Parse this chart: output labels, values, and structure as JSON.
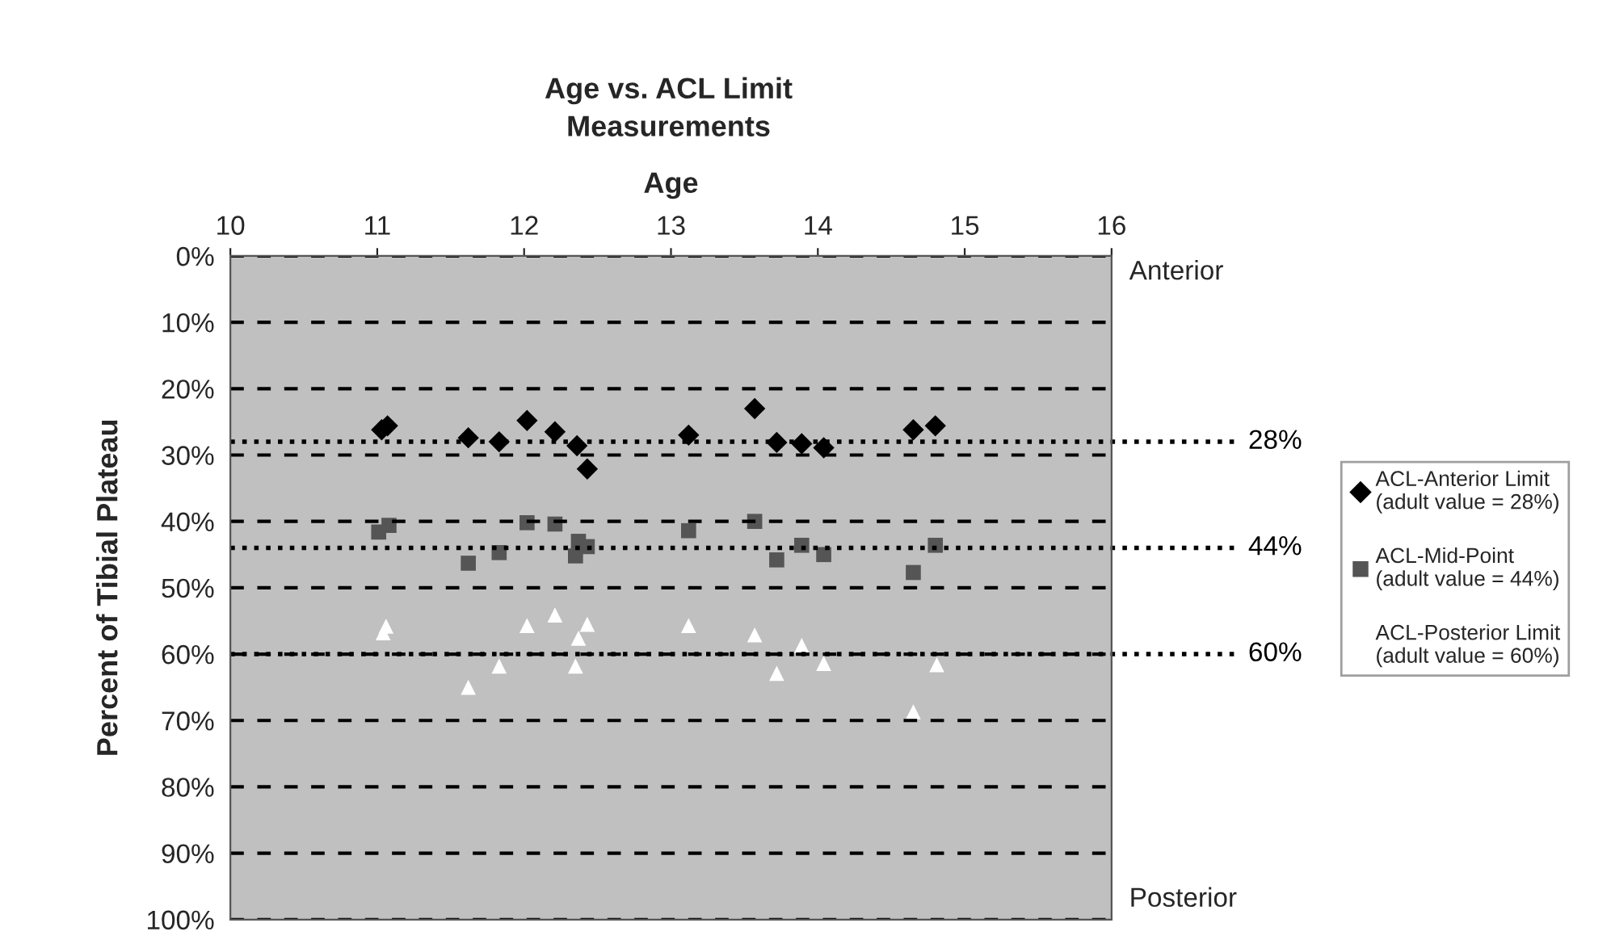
{
  "chart_data": {
    "type": "scatter",
    "title": "Age vs. ACL Limit\nMeasurements",
    "xlabel": "Age",
    "ylabel": "Percent of Tibial Plateau",
    "xlim": [
      10,
      16
    ],
    "xticks": [
      10,
      11,
      12,
      13,
      14,
      15,
      16
    ],
    "ylim": [
      100,
      0
    ],
    "yticks": [
      {
        "value": 0,
        "label": "0%"
      },
      {
        "value": 10,
        "label": "10%"
      },
      {
        "value": 20,
        "label": "20%"
      },
      {
        "value": 30,
        "label": "30%"
      },
      {
        "value": 40,
        "label": "40%"
      },
      {
        "value": 50,
        "label": "50%"
      },
      {
        "value": 60,
        "label": "60%"
      },
      {
        "value": 70,
        "label": "70%"
      },
      {
        "value": 80,
        "label": "80%"
      },
      {
        "value": 90,
        "label": "90%"
      },
      {
        "value": 100,
        "label": "100%"
      }
    ],
    "grid": "y",
    "legend": "right",
    "series": [
      {
        "name": "ACL-Anterior Limit\n(adult value = 28%)",
        "color": "#000000",
        "marker": "diamond",
        "x": [
          11.03,
          11.07,
          11.62,
          11.83,
          12.02,
          12.21,
          12.36,
          12.43,
          13.12,
          13.57,
          13.72,
          13.89,
          14.04,
          14.65,
          14.8
        ],
        "values": [
          26.2,
          25.6,
          27.4,
          28.0,
          24.8,
          26.5,
          28.6,
          32.1,
          27.0,
          23.0,
          28.1,
          28.3,
          28.9,
          26.2,
          25.6
        ]
      },
      {
        "name": "ACL-Mid-Point\n(adult value = 44%)",
        "color": "#555555",
        "marker": "square",
        "x": [
          11.08,
          11.01,
          11.62,
          11.83,
          12.02,
          12.21,
          12.37,
          12.43,
          12.35,
          13.12,
          13.57,
          13.72,
          13.89,
          14.04,
          14.65,
          14.8
        ],
        "values": [
          40.6,
          41.6,
          46.3,
          44.7,
          40.2,
          40.4,
          43.0,
          43.8,
          45.2,
          41.4,
          40.0,
          45.8,
          43.6,
          45.0,
          47.7,
          43.6
        ]
      },
      {
        "name": "ACL-Posterior Limit\n(adult value = 60%)",
        "color": "#ffffff",
        "marker": "triangle",
        "x": [
          11.06,
          11.04,
          11.62,
          11.83,
          12.02,
          12.21,
          12.43,
          12.37,
          12.35,
          13.12,
          13.57,
          13.72,
          13.89,
          14.04,
          14.65,
          14.81
        ],
        "values": [
          55.8,
          56.8,
          65.0,
          61.8,
          55.7,
          54.1,
          55.5,
          57.6,
          61.8,
          55.7,
          57.1,
          62.9,
          58.7,
          61.4,
          68.7,
          61.6
        ]
      }
    ],
    "ref_lines": [
      {
        "axis": "y",
        "value": 28,
        "label": "28%",
        "line_style": "dotted",
        "color": "#000000"
      },
      {
        "axis": "y",
        "value": 44,
        "label": "44%",
        "line_style": "dotted",
        "color": "#000000"
      },
      {
        "axis": "y",
        "value": 60,
        "label": "60%",
        "line_style": "dotted",
        "color": "#000000"
      }
    ],
    "annotations": [
      "Anterior",
      "Posterior"
    ]
  }
}
